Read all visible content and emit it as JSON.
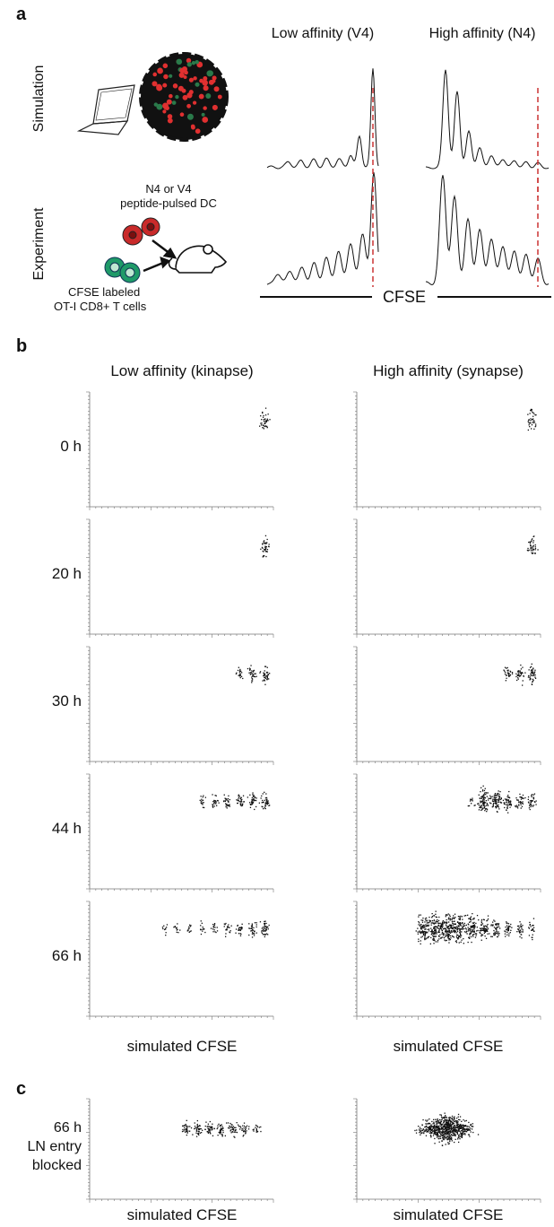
{
  "panel_a": {
    "label": "a",
    "columns": [
      "Low affinity (V4)",
      "High affinity (N4)"
    ],
    "rows": [
      "Simulation",
      "Experiment"
    ],
    "dc_label": [
      "N4 or V4",
      "peptide-pulsed DC"
    ],
    "cell_label": [
      "CFSE labeled",
      "OT-I CD8+ T cells"
    ],
    "x_label": "CFSE"
  },
  "panel_b": {
    "label": "b",
    "columns": [
      "Low affinity (kinapse)",
      "High affinity (synapse)"
    ],
    "rows": [
      "0 h",
      "20 h",
      "30 h",
      "44 h",
      "66 h"
    ],
    "x_labels": [
      "simulated CFSE",
      "simulated CFSE"
    ]
  },
  "panel_c": {
    "label": "c",
    "row_label": [
      "66 h",
      "LN entry",
      "blocked"
    ],
    "x_labels": [
      "simulated CFSE",
      "simulated CFSE"
    ]
  }
}
